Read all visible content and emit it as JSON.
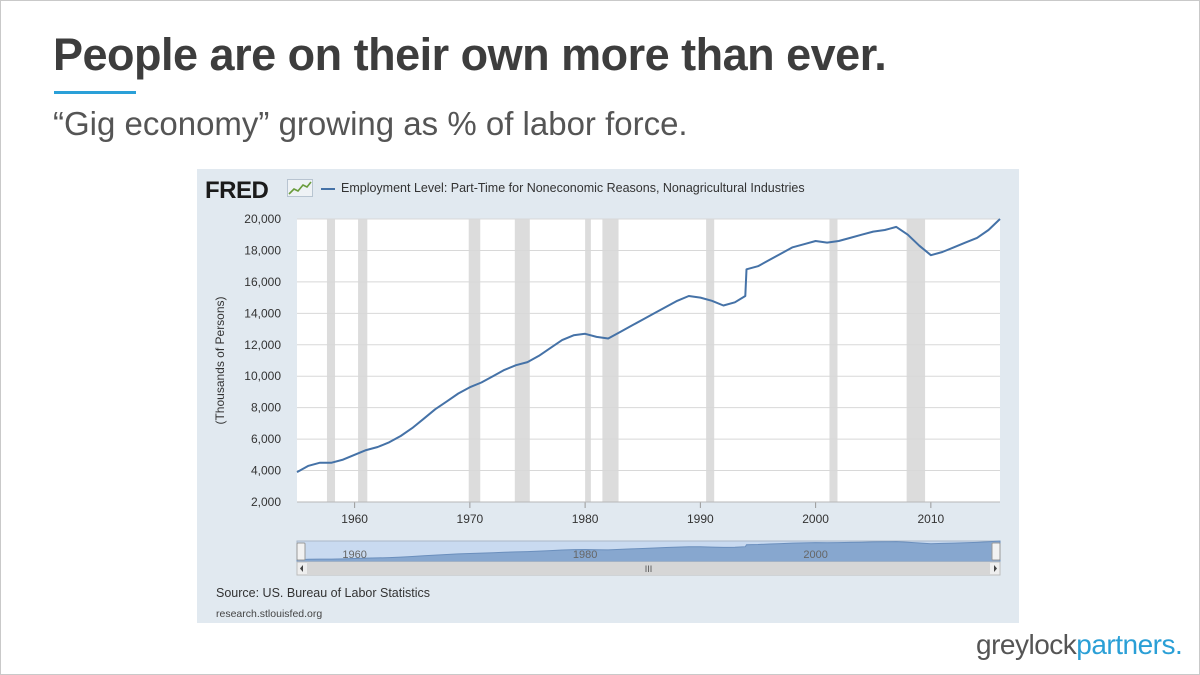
{
  "slide": {
    "title": "People are on their own more than ever.",
    "subtitle": "“Gig economy” growing as % of labor force.",
    "brand_prefix": "greylock",
    "brand_suffix": "partners.",
    "accent_color": "#2aa0d8"
  },
  "fred": {
    "logo": "FRED",
    "logo_icon": "trend-chart-icon",
    "source": "Source: US. Bureau of Labor Statistics",
    "site": "research.stlouisfed.org",
    "navigator_labels": [
      "1960",
      "1980",
      "2000"
    ],
    "scrollbar_grip": "III"
  },
  "chart_data": {
    "type": "line",
    "title": "",
    "xlabel": "",
    "ylabel": "(Thousands of Persons)",
    "ylim": [
      2000,
      20000
    ],
    "xlim": [
      1955,
      2016
    ],
    "yticks": [
      "2,000",
      "4,000",
      "6,000",
      "8,000",
      "10,000",
      "12,000",
      "14,000",
      "16,000",
      "18,000",
      "20,000"
    ],
    "xticks": [
      "1960",
      "1970",
      "1980",
      "1990",
      "2000",
      "2010"
    ],
    "grid": true,
    "legend_position": "top",
    "line_color": "#4572a7",
    "recession_color": "#dcdcdc",
    "recessions": [
      [
        1957.6,
        1958.3
      ],
      [
        1960.3,
        1961.1
      ],
      [
        1969.9,
        1970.9
      ],
      [
        1973.9,
        1975.2
      ],
      [
        1980.0,
        1980.5
      ],
      [
        1981.5,
        1982.9
      ],
      [
        1990.5,
        1991.2
      ],
      [
        2001.2,
        2001.9
      ],
      [
        2007.9,
        2009.5
      ]
    ],
    "series": [
      {
        "name": "Employment Level: Part-Time for Noneconomic Reasons, Nonagricultural Industries",
        "x": [
          1955.0,
          1956.0,
          1957.0,
          1958.0,
          1959.0,
          1960.0,
          1961.0,
          1962.0,
          1963.0,
          1964.0,
          1965.0,
          1966.0,
          1967.0,
          1968.0,
          1969.0,
          1970.0,
          1971.0,
          1972.0,
          1973.0,
          1974.0,
          1975.0,
          1976.0,
          1977.0,
          1978.0,
          1979.0,
          1980.0,
          1981.0,
          1982.0,
          1983.0,
          1984.0,
          1985.0,
          1986.0,
          1987.0,
          1988.0,
          1989.0,
          1990.0,
          1991.0,
          1992.0,
          1993.0,
          1993.9,
          1994.0,
          1995.0,
          1996.0,
          1997.0,
          1998.0,
          1999.0,
          2000.0,
          2001.0,
          2002.0,
          2003.0,
          2004.0,
          2005.0,
          2006.0,
          2007.0,
          2008.0,
          2009.0,
          2010.0,
          2011.0,
          2012.0,
          2013.0,
          2014.0,
          2015.0,
          2016.0
        ],
        "values": [
          3900,
          4300,
          4500,
          4500,
          4700,
          5000,
          5300,
          5500,
          5800,
          6200,
          6700,
          7300,
          7900,
          8400,
          8900,
          9300,
          9600,
          10000,
          10400,
          10700,
          10900,
          11300,
          11800,
          12300,
          12600,
          12700,
          12500,
          12400,
          12800,
          13200,
          13600,
          14000,
          14400,
          14800,
          15100,
          15000,
          14800,
          14500,
          14700,
          15100,
          16800,
          17000,
          17400,
          17800,
          18200,
          18400,
          18600,
          18500,
          18600,
          18800,
          19000,
          19200,
          19300,
          19500,
          19000,
          18300,
          17700,
          17900,
          18200,
          18500,
          18800,
          19300,
          20000
        ]
      }
    ]
  }
}
